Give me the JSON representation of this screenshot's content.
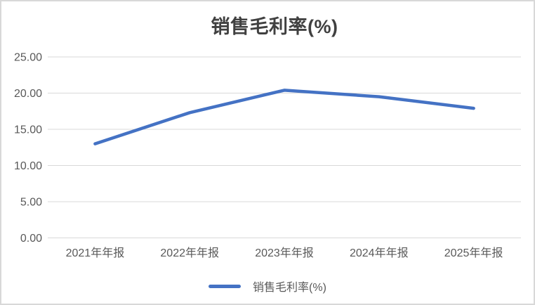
{
  "chart_data": {
    "type": "line",
    "title": "销售毛利率(%)",
    "categories": [
      "2021年年报",
      "2022年年报",
      "2023年年报",
      "2024年年报",
      "2025年年报"
    ],
    "series": [
      {
        "name": "销售毛利率(%)",
        "values": [
          13.0,
          17.3,
          20.4,
          19.5,
          17.9
        ],
        "color": "#4472C4"
      }
    ],
    "y_ticks": [
      "0.00",
      "5.00",
      "10.00",
      "15.00",
      "20.00",
      "25.00"
    ],
    "ylim": [
      0,
      25
    ],
    "grid": true,
    "legend_position": "bottom",
    "legend": [
      {
        "label": "销售毛利率(%)",
        "color": "#4472C4"
      }
    ],
    "colors": {
      "title_text": "#404040",
      "axis_text": "#595959",
      "gridline": "#D9D9D9",
      "series_line": "#4472C4",
      "background": "#FFFFFF",
      "border": "#D8D8D8"
    }
  }
}
